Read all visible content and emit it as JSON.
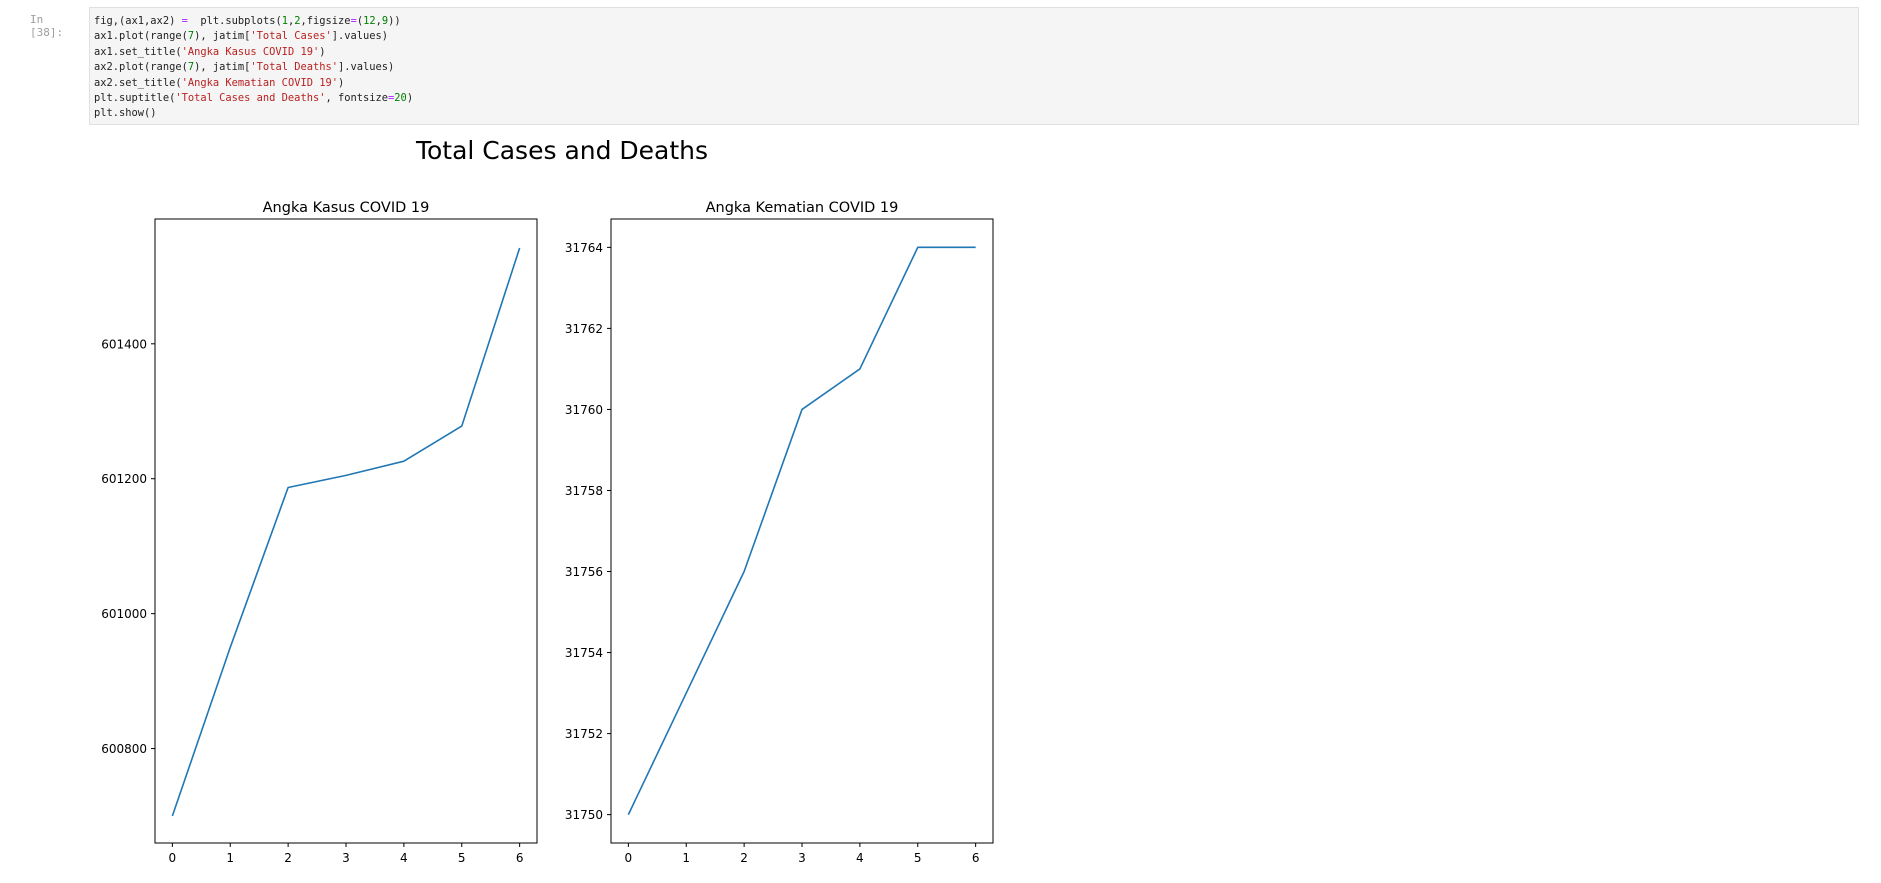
{
  "cell": {
    "prompt": "In [38]:",
    "code_lines": [
      [
        {
          "t": "fig,(ax1,ax2) "
        },
        {
          "t": "=",
          "c": "op"
        },
        {
          "t": "  plt"
        },
        {
          "t": "."
        },
        {
          "t": "subplots("
        },
        {
          "t": "1",
          "c": "num"
        },
        {
          "t": ","
        },
        {
          "t": "2",
          "c": "num"
        },
        {
          "t": ",figsize"
        },
        {
          "t": "=",
          "c": "op"
        },
        {
          "t": "("
        },
        {
          "t": "12",
          "c": "num"
        },
        {
          "t": ","
        },
        {
          "t": "9",
          "c": "num"
        },
        {
          "t": "))"
        }
      ],
      [
        {
          "t": "ax1.plot(range("
        },
        {
          "t": "7",
          "c": "num"
        },
        {
          "t": "), jatim["
        },
        {
          "t": "'Total Cases'",
          "c": "str"
        },
        {
          "t": "].values)"
        }
      ],
      [
        {
          "t": "ax1.set_title("
        },
        {
          "t": "'Angka Kasus COVID 19'",
          "c": "str"
        },
        {
          "t": ")"
        }
      ],
      [
        {
          "t": "ax2.plot(range("
        },
        {
          "t": "7",
          "c": "num"
        },
        {
          "t": "), jatim["
        },
        {
          "t": "'Total Deaths'",
          "c": "str"
        },
        {
          "t": "].values)"
        }
      ],
      [
        {
          "t": "ax2.set_title("
        },
        {
          "t": "'Angka Kematian COVID 19'",
          "c": "str"
        },
        {
          "t": ")"
        }
      ],
      [
        {
          "t": "plt.suptitle("
        },
        {
          "t": "'Total Cases and Deaths'",
          "c": "str"
        },
        {
          "t": ", fontsize"
        },
        {
          "t": "=",
          "c": "op"
        },
        {
          "t": "20",
          "c": "num"
        },
        {
          "t": ")"
        }
      ],
      [
        {
          "t": "plt.show()"
        }
      ]
    ]
  },
  "figure": {
    "suptitle": "Total Cases and Deaths",
    "line_color": "#1f77b4"
  },
  "chart_data": [
    {
      "type": "line",
      "title": "Angka Kasus COVID 19",
      "xlabel": "",
      "ylabel": "",
      "x": [
        0,
        1,
        2,
        3,
        4,
        5,
        6
      ],
      "series": [
        {
          "values": [
            600700,
            600950,
            601187,
            601205,
            601226,
            601278,
            601542
          ]
        }
      ],
      "xlim": [
        -0.3,
        6.3
      ],
      "ylim": [
        600660,
        601585
      ],
      "xticks": [
        0,
        1,
        2,
        3,
        4,
        5,
        6
      ],
      "yticks": [
        600800,
        601000,
        601200,
        601400
      ],
      "grid": false
    },
    {
      "type": "line",
      "title": "Angka Kematian COVID 19",
      "xlabel": "",
      "ylabel": "",
      "x": [
        0,
        1,
        2,
        3,
        4,
        5,
        6
      ],
      "series": [
        {
          "values": [
            31750,
            31753,
            31756,
            31760,
            31761,
            31764,
            31764
          ]
        }
      ],
      "xlim": [
        -0.3,
        6.3
      ],
      "ylim": [
        31749.3,
        31764.7
      ],
      "xticks": [
        0,
        1,
        2,
        3,
        4,
        5,
        6
      ],
      "yticks": [
        31750,
        31752,
        31754,
        31756,
        31758,
        31760,
        31762,
        31764
      ],
      "grid": false
    }
  ]
}
